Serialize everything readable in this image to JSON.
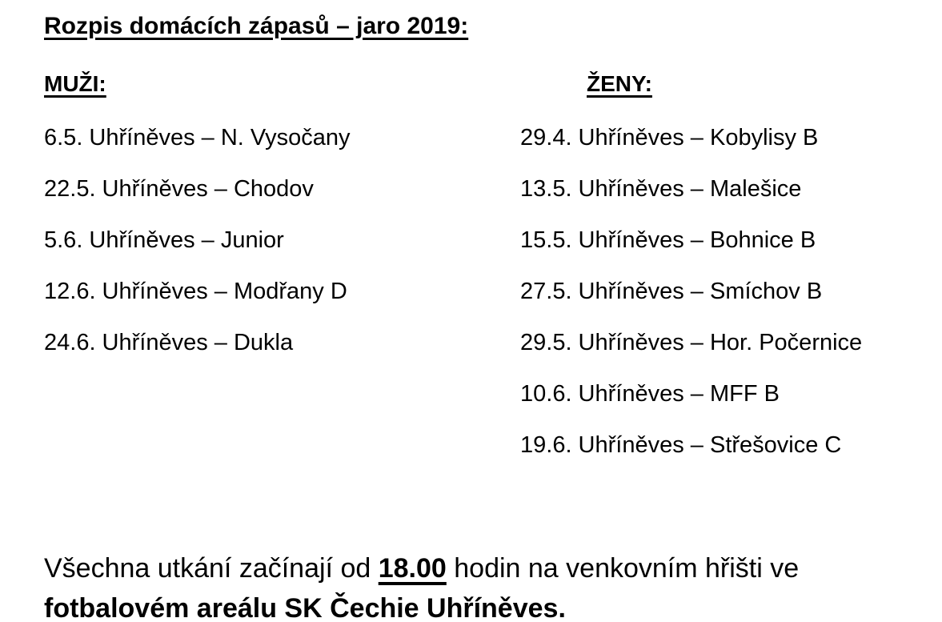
{
  "title": "Rozpis domácích zápasů – jaro 2019:",
  "men": {
    "header": "MUŽI:",
    "matches": [
      "6.5. Uhříněves – N. Vysočany",
      "22.5. Uhříněves – Chodov",
      "5.6. Uhříněves – Junior",
      "12.6. Uhříněves – Modřany D",
      "24.6. Uhříněves – Dukla"
    ]
  },
  "women": {
    "header": "ŽENY:",
    "matches": [
      "29.4. Uhříněves – Kobylisy B",
      "13.5. Uhříněves – Malešice",
      "15.5. Uhříněves – Bohnice B",
      "27.5. Uhříněves – Smíchov B",
      "29.5. Uhříněves – Hor. Počernice",
      "10.6. Uhříněves – MFF B",
      "19.6. Uhříněves – Střešovice C"
    ]
  },
  "footer": {
    "before_time": "Všechna utkání začínají od ",
    "time": "18.00",
    "after_time": " hodin na venkovním hřišti ve",
    "line2": "fotbalovém areálu SK Čechie Uhříněves."
  },
  "colors": {
    "text": "#000000",
    "background": "#ffffff"
  }
}
